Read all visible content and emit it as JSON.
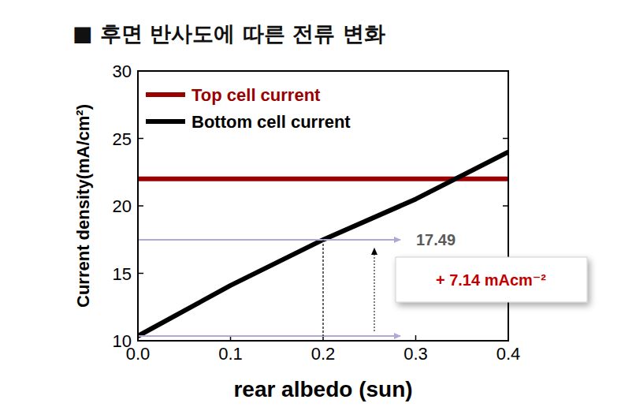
{
  "chart_data": {
    "type": "line",
    "title": "■ 후면 반사도에 따른 전류 변화",
    "x_label": "rear albedo (sun)",
    "y_label": "Current density(mA/cm²)",
    "x": [
      0,
      0.1,
      0.2,
      0.3,
      0.4
    ],
    "series": [
      {
        "name": "Top cell current",
        "color": "#990000",
        "values": [
          22,
          22,
          22,
          22,
          22
        ]
      },
      {
        "name": "Bottom cell current",
        "color": "#000000",
        "values": [
          10.35,
          14.1,
          17.49,
          20.5,
          24.0
        ]
      }
    ],
    "xlim": [
      0,
      0.4
    ],
    "ylim": [
      10,
      30
    ],
    "xticks": [
      {
        "value": 0,
        "label": "0.0"
      },
      0.1,
      0.2,
      0.3,
      0.4
    ],
    "yticks": [
      10,
      15,
      20,
      25,
      30
    ],
    "grid": false,
    "legend": "upper left",
    "annotations": {
      "level_label": "17.49",
      "difference_label": "+ 7.14 mAcm⁻²"
    }
  }
}
